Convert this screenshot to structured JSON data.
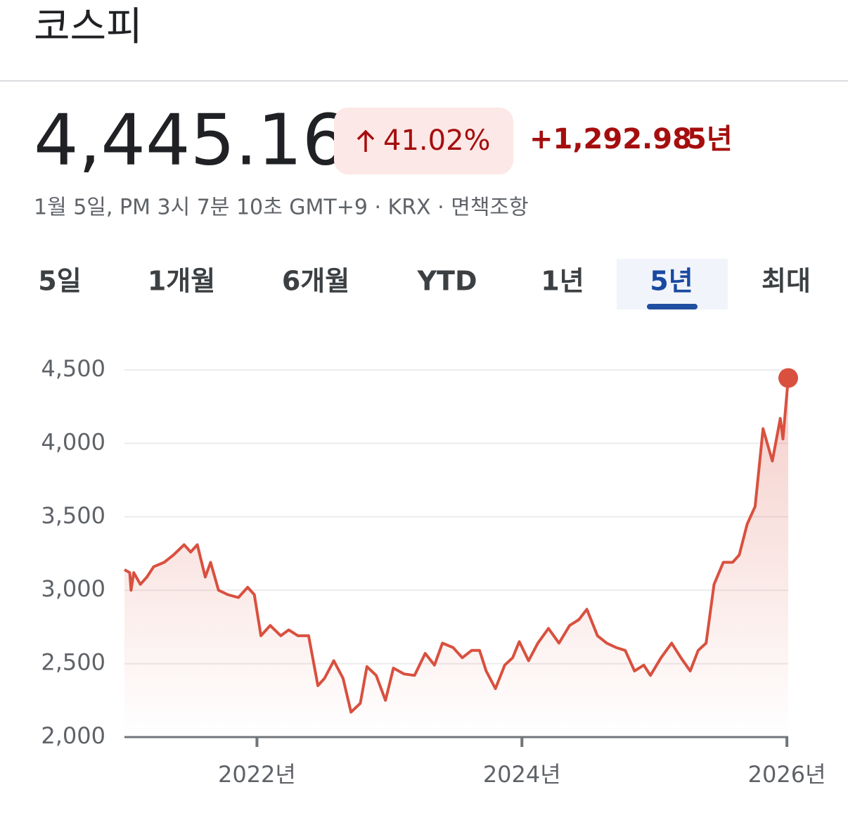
{
  "header": {
    "title": "코스피"
  },
  "quote": {
    "price": "4,445.16",
    "change_percent": "41.02%",
    "change": "+1,292.98",
    "period": "5년",
    "timestamp": "1월 5일, PM 3시 7분 10초 GMT+9 · KRX · 면책조항"
  },
  "tabs": [
    {
      "label": "5일",
      "selected": false
    },
    {
      "label": "1개월",
      "selected": false
    },
    {
      "label": "6개월",
      "selected": false
    },
    {
      "label": "YTD",
      "selected": false
    },
    {
      "label": "1년",
      "selected": false
    },
    {
      "label": "5년",
      "selected": true
    },
    {
      "label": "최대",
      "selected": false
    }
  ],
  "chart_data": {
    "type": "line",
    "color": "#d9503f",
    "grid": true,
    "end_marker": true,
    "x": [
      2021.0,
      2021.04,
      2021.05,
      2021.07,
      2021.12,
      2021.17,
      2021.22,
      2021.3,
      2021.37,
      2021.45,
      2021.5,
      2021.55,
      2021.61,
      2021.65,
      2021.71,
      2021.78,
      2021.86,
      2021.93,
      2021.98,
      2022.03,
      2022.1,
      2022.18,
      2022.24,
      2022.31,
      2022.39,
      2022.46,
      2022.51,
      2022.58,
      2022.65,
      2022.71,
      2022.78,
      2022.83,
      2022.9,
      2022.97,
      2023.03,
      2023.11,
      2023.19,
      2023.27,
      2023.34,
      2023.4,
      2023.48,
      2023.55,
      2023.62,
      2023.68,
      2023.73,
      2023.8,
      2023.87,
      2023.93,
      2023.98,
      2024.05,
      2024.12,
      2024.2,
      2024.28,
      2024.36,
      2024.43,
      2024.49,
      2024.57,
      2024.64,
      2024.71,
      2024.78,
      2024.85,
      2024.92,
      2024.97,
      2025.05,
      2025.13,
      2025.2,
      2025.27,
      2025.33,
      2025.39,
      2025.45,
      2025.52,
      2025.59,
      2025.64,
      2025.7,
      2025.76,
      2025.82,
      2025.89,
      2025.95,
      2025.97,
      2026.01
    ],
    "values": [
      3140,
      3120,
      3000,
      3120,
      3040,
      3090,
      3160,
      3190,
      3240,
      3310,
      3260,
      3310,
      3090,
      3190,
      3000,
      2970,
      2950,
      3020,
      2970,
      2690,
      2760,
      2690,
      2730,
      2690,
      2690,
      2350,
      2400,
      2520,
      2400,
      2170,
      2230,
      2480,
      2420,
      2250,
      2470,
      2430,
      2420,
      2570,
      2490,
      2640,
      2610,
      2540,
      2590,
      2590,
      2450,
      2330,
      2490,
      2540,
      2650,
      2520,
      2640,
      2740,
      2640,
      2760,
      2800,
      2870,
      2690,
      2640,
      2610,
      2590,
      2450,
      2490,
      2420,
      2540,
      2640,
      2540,
      2450,
      2590,
      2640,
      3040,
      3190,
      3190,
      3240,
      3450,
      3570,
      4100,
      3880,
      4170,
      4030,
      4445.16
    ],
    "xlim": [
      2021.0,
      2026.01
    ],
    "ylim": [
      2000,
      4500
    ],
    "xticks": [
      {
        "value": 2022,
        "label": "2022년"
      },
      {
        "value": 2024,
        "label": "2024년"
      },
      {
        "value": 2026,
        "label": "2026년"
      }
    ],
    "yticks": [
      {
        "value": 2000,
        "label": "2,000"
      },
      {
        "value": 2500,
        "label": "2,500"
      },
      {
        "value": 3000,
        "label": "3,000"
      },
      {
        "value": 3500,
        "label": "3,500"
      },
      {
        "value": 4000,
        "label": "4,000"
      },
      {
        "value": 4500,
        "label": "4,500"
      }
    ]
  }
}
